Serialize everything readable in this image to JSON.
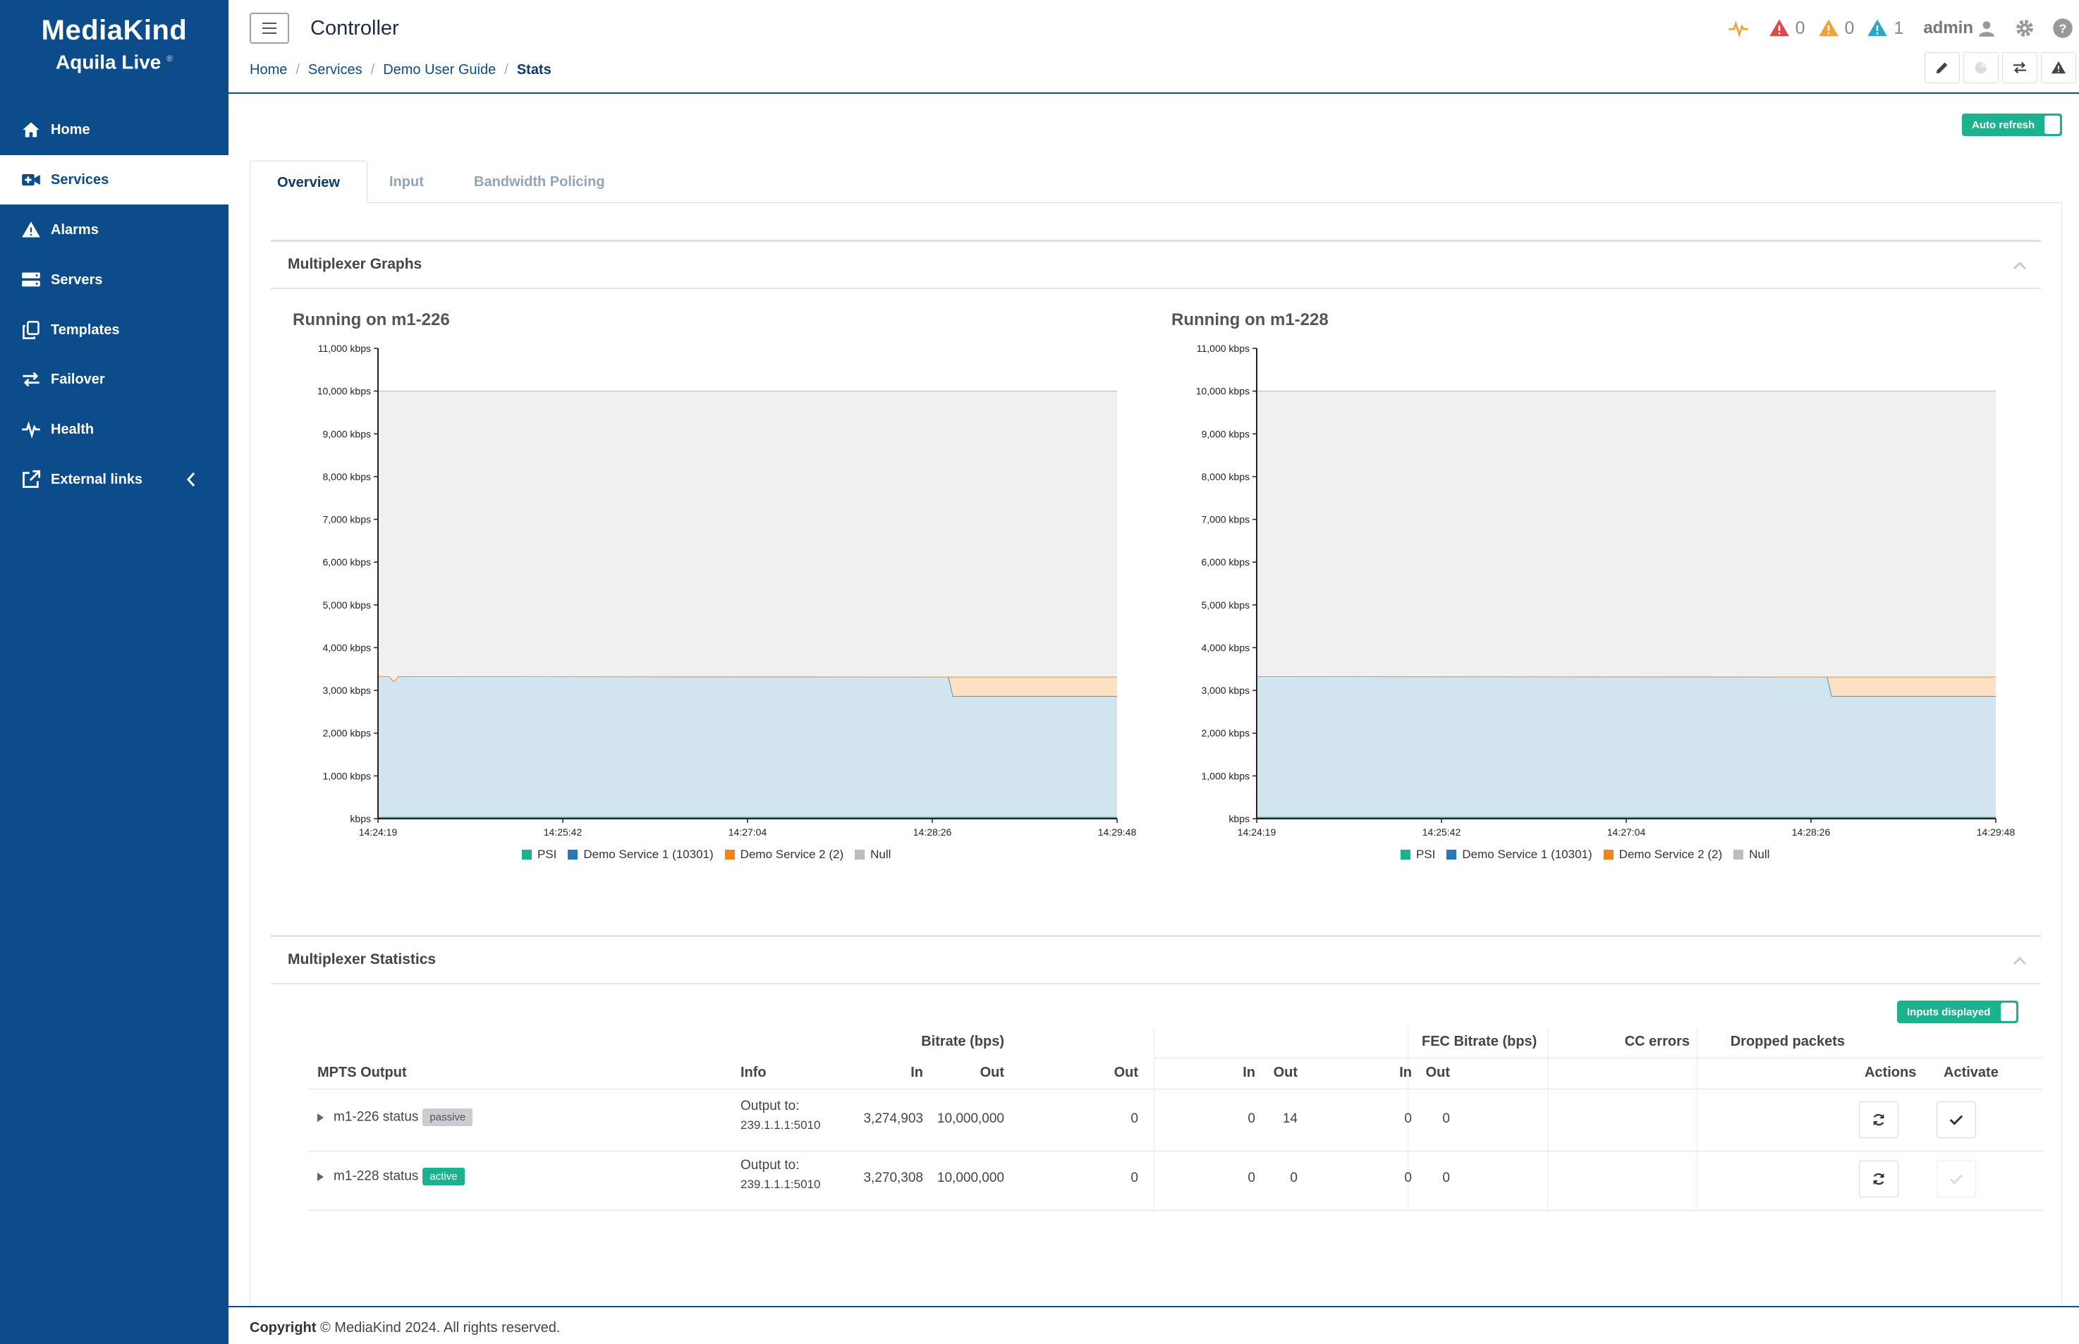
{
  "brand": {
    "logo": "MediaKind",
    "product": "Aquila Live",
    "product_mark": "®"
  },
  "sidebar": {
    "items": [
      {
        "label": "Home",
        "icon": "home-icon"
      },
      {
        "label": "Services",
        "icon": "video-plus-icon"
      },
      {
        "label": "Alarms",
        "icon": "warning-icon"
      },
      {
        "label": "Servers",
        "icon": "server-icon"
      },
      {
        "label": "Templates",
        "icon": "copy-icon"
      },
      {
        "label": "Failover",
        "icon": "swap-icon"
      },
      {
        "label": "Health",
        "icon": "heartbeat-icon"
      },
      {
        "label": "External links",
        "icon": "external-link-icon"
      }
    ],
    "active": "Services"
  },
  "header": {
    "title": "Controller",
    "breadcrumb": [
      "Home",
      "Services",
      "Demo User Guide",
      "Stats"
    ],
    "alarm_counts": {
      "critical": "0",
      "major": "0",
      "minor": "1"
    },
    "user": "admin",
    "colors": {
      "critical": "#e04848",
      "major": "#f0a23a",
      "minor": "#2aa7c9",
      "health": "#f0a23a"
    }
  },
  "toggles": {
    "auto_refresh": "Auto refresh",
    "inputs_displayed": "Inputs displayed"
  },
  "tabs": [
    "Overview",
    "Input",
    "Bandwidth Policing"
  ],
  "graphs_panel": {
    "title": "Multiplexer Graphs"
  },
  "stats_panel": {
    "title": "Multiplexer Statistics"
  },
  "chart_data": [
    {
      "type": "area",
      "title": "Running on m1-226",
      "x_ticks": [
        "14:24:19",
        "14:25:42",
        "14:27:04",
        "14:28:26",
        "14:29:48"
      ],
      "y_ticks": [
        "kbps",
        "1,000 kbps",
        "2,000 kbps",
        "3,000 kbps",
        "4,000 kbps",
        "5,000 kbps",
        "6,000 kbps",
        "7,000 kbps",
        "8,000 kbps",
        "9,000 kbps",
        "10,000 kbps",
        "11,000 kbps"
      ],
      "ylim": [
        0,
        11000
      ],
      "x_range_seconds": [
        0,
        329
      ],
      "series": [
        {
          "name": "PSI",
          "color": "#1db28f",
          "points": [
            [
              0,
              40
            ],
            [
              329,
              40
            ]
          ]
        },
        {
          "name": "Demo Service 1 (10301)",
          "color": "#2a77b8",
          "points": [
            [
              0,
              3300
            ],
            [
              5,
              3290
            ],
            [
              7,
              3170
            ],
            [
              9,
              3290
            ],
            [
              254,
              3280
            ],
            [
              256,
              2830
            ],
            [
              329,
              2830
            ]
          ]
        },
        {
          "name": "Demo Service 2 (2)",
          "color": "#f0851e",
          "points": [
            [
              0,
              0
            ],
            [
              254,
              0
            ],
            [
              256,
              450
            ],
            [
              329,
              450
            ]
          ]
        },
        {
          "name": "Null",
          "color": "#bdbdbd",
          "points": [
            [
              0,
              6660
            ],
            [
              5,
              6670
            ],
            [
              7,
              6790
            ],
            [
              9,
              6670
            ],
            [
              254,
              6680
            ],
            [
              256,
              6680
            ],
            [
              329,
              6680
            ]
          ]
        }
      ],
      "total_line": 10000
    },
    {
      "type": "area",
      "title": "Running on m1-228",
      "x_ticks": [
        "14:24:19",
        "14:25:42",
        "14:27:04",
        "14:28:26",
        "14:29:48"
      ],
      "y_ticks": [
        "kbps",
        "1,000 kbps",
        "2,000 kbps",
        "3,000 kbps",
        "4,000 kbps",
        "5,000 kbps",
        "6,000 kbps",
        "7,000 kbps",
        "8,000 kbps",
        "9,000 kbps",
        "10,000 kbps",
        "11,000 kbps"
      ],
      "ylim": [
        0,
        11000
      ],
      "x_range_seconds": [
        0,
        329
      ],
      "series": [
        {
          "name": "PSI",
          "color": "#1db28f",
          "points": [
            [
              0,
              40
            ],
            [
              329,
              40
            ]
          ]
        },
        {
          "name": "Demo Service 1 (10301)",
          "color": "#2a77b8",
          "points": [
            [
              0,
              3290
            ],
            [
              254,
              3280
            ],
            [
              256,
              2830
            ],
            [
              329,
              2830
            ]
          ]
        },
        {
          "name": "Demo Service 2 (2)",
          "color": "#f0851e",
          "points": [
            [
              0,
              0
            ],
            [
              254,
              0
            ],
            [
              256,
              450
            ],
            [
              329,
              450
            ]
          ]
        },
        {
          "name": "Null",
          "color": "#bdbdbd",
          "points": [
            [
              0,
              6670
            ],
            [
              254,
              6680
            ],
            [
              256,
              6680
            ],
            [
              329,
              6680
            ]
          ]
        }
      ],
      "total_line": 10000
    }
  ],
  "stats_table": {
    "group_headers": {
      "bitrate": "Bitrate (bps)",
      "fec": "FEC Bitrate (bps)",
      "cc": "CC errors",
      "dropped": "Dropped packets"
    },
    "columns": {
      "mpts": "MPTS Output",
      "info": "Info",
      "in": "In",
      "out": "Out",
      "actions": "Actions",
      "activate": "Activate"
    },
    "rows": [
      {
        "name": "m1-226 status",
        "badge": "passive",
        "info_label": "Output to:",
        "info_value": "239.1.1.1:5010",
        "bitrate_in": "3,274,903",
        "bitrate_out": "10,000,000",
        "fec_out": "0",
        "cc_in": "0",
        "cc_out": "14",
        "drop_in": "0",
        "drop_out": "0"
      },
      {
        "name": "m1-228 status",
        "badge": "active",
        "info_label": "Output to:",
        "info_value": "239.1.1.1:5010",
        "bitrate_in": "3,270,308",
        "bitrate_out": "10,000,000",
        "fec_out": "0",
        "cc_in": "0",
        "cc_out": "0",
        "drop_in": "0",
        "drop_out": "0"
      }
    ]
  },
  "footer": {
    "bold": "Copyright",
    "text": "© MediaKind 2024. All rights reserved."
  }
}
